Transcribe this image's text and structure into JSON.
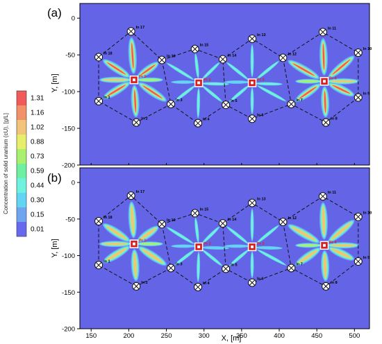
{
  "figure": {
    "panels": [
      {
        "label": "(a)"
      },
      {
        "label": "(b)"
      }
    ]
  },
  "chart_data": {
    "type": "heatmap",
    "xlabel": "X, [m]",
    "ylabel": "Y, [m]",
    "xlim": [
      135,
      520
    ],
    "ylim": [
      -200,
      20
    ],
    "xticks": [
      150,
      200,
      250,
      300,
      350,
      400,
      450,
      500
    ],
    "yticks": [
      0,
      -50,
      -100,
      -150,
      -200
    ],
    "colorbar": {
      "label": "Concentration of solid uranium (cU), [g/L]",
      "levels": [
        1.31,
        1.16,
        1.02,
        0.88,
        0.73,
        0.59,
        0.44,
        0.3,
        0.15,
        0.01
      ],
      "colors": [
        "#f05a5a",
        "#f2906a",
        "#f2c37a",
        "#e6ee6a",
        "#a8f06e",
        "#6ef0a0",
        "#6ef2de",
        "#62d4f4",
        "#6fa4ee",
        "#6868ee"
      ]
    },
    "background_color": "#6464e6",
    "injection_wells": [
      {
        "label": "In 1",
        "x": 160,
        "y": -113
      },
      {
        "label": "In 2",
        "x": 210,
        "y": -142
      },
      {
        "label": "In 3",
        "x": 256,
        "y": -117
      },
      {
        "label": "In 4",
        "x": 292,
        "y": -143
      },
      {
        "label": "In 5",
        "x": 329,
        "y": -118
      },
      {
        "label": "In 6",
        "x": 364,
        "y": -137
      },
      {
        "label": "In 7",
        "x": 416,
        "y": -117
      },
      {
        "label": "In 8",
        "x": 462,
        "y": -142
      },
      {
        "label": "In 9",
        "x": 505,
        "y": -108
      },
      {
        "label": "In 10",
        "x": 505,
        "y": -47
      },
      {
        "label": "In 11",
        "x": 458,
        "y": -19
      },
      {
        "label": "In 12",
        "x": 405,
        "y": -54
      },
      {
        "label": "In 13",
        "x": 364,
        "y": -28
      },
      {
        "label": "In 14",
        "x": 325,
        "y": -56
      },
      {
        "label": "In 15",
        "x": 288,
        "y": -42
      },
      {
        "label": "In 16",
        "x": 244,
        "y": -57
      },
      {
        "label": "In 17",
        "x": 203,
        "y": -18
      },
      {
        "label": "In 18",
        "x": 160,
        "y": -53
      }
    ],
    "production_wells": [
      {
        "label": "Pr 1",
        "x": 207,
        "y": -84
      },
      {
        "label": "Pr 2",
        "x": 293,
        "y": -88
      },
      {
        "label": "Pr 3",
        "x": 364,
        "y": -88
      },
      {
        "label": "Pr 4",
        "x": 460,
        "y": -86
      }
    ],
    "cell_boundaries": [
      [
        "In 1",
        "In 18",
        "In 17",
        "In 16",
        "In 3",
        "In 2",
        "In 1"
      ],
      [
        "In 16",
        "In 15",
        "In 14",
        "In 5",
        "In 4",
        "In 3"
      ],
      [
        "In 14",
        "In 13",
        "In 12",
        "In 7",
        "In 6",
        "In 5"
      ],
      [
        "In 12",
        "In 11",
        "In 10",
        "In 9",
        "In 8",
        "In 7"
      ]
    ]
  }
}
